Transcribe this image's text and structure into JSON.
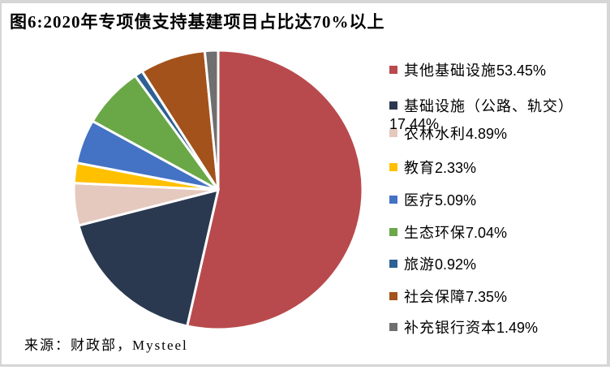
{
  "header": {
    "title": "图6:2020年专项债支持基建项目占比达70%以上"
  },
  "source": {
    "text": "来源：财政部，Mysteel"
  },
  "chart_data": {
    "type": "pie",
    "title": "2020年专项债支持基建项目占比达70%以上",
    "start_angle_deg": 0,
    "direction": "clockwise",
    "legend_position": "right",
    "categories": [
      "其他基础设施",
      "基础设施（公路、轨交）",
      "农林水利",
      "教育",
      "医疗",
      "生态环保",
      "旅游",
      "社会保障",
      "补充银行资本"
    ],
    "values": [
      53.45,
      17.44,
      4.89,
      2.33,
      5.09,
      7.04,
      0.92,
      7.35,
      1.49
    ],
    "slices": [
      {
        "label": "其他基础设施",
        "value": 53.45,
        "value_text": "53.45%",
        "color": "#B84A4D"
      },
      {
        "label": "基础设施（公路、轨交）",
        "value": 17.44,
        "value_text": "17.44%",
        "color": "#2A3950"
      },
      {
        "label": "农林水利",
        "value": 4.89,
        "value_text": "4.89%",
        "color": "#E5C9BE"
      },
      {
        "label": "教育",
        "value": 2.33,
        "value_text": "2.33%",
        "color": "#FFC000"
      },
      {
        "label": "医疗",
        "value": 5.09,
        "value_text": "5.09%",
        "color": "#4472C4"
      },
      {
        "label": "生态环保",
        "value": 7.04,
        "value_text": "7.04%",
        "color": "#6AA847"
      },
      {
        "label": "旅游",
        "value": 0.92,
        "value_text": "0.92%",
        "color": "#2E6093"
      },
      {
        "label": "社会保障",
        "value": 7.35,
        "value_text": "7.35%",
        "color": "#A3521B"
      },
      {
        "label": "补充银行资本",
        "value": 1.49,
        "value_text": "1.49%",
        "color": "#6F6F6F"
      }
    ]
  }
}
